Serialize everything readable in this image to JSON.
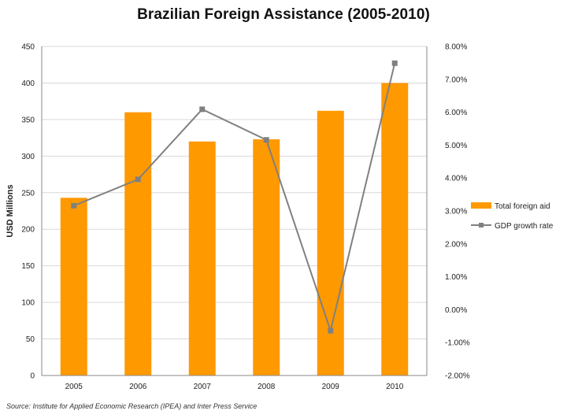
{
  "chart_data": {
    "type": "bar",
    "title": "Brazilian Foreign Assistance (2005-2010)",
    "source": "Source: Institute for Applied Economic Research (IPEA) and Inter Press Service",
    "categories": [
      "2005",
      "2006",
      "2007",
      "2008",
      "2009",
      "2010"
    ],
    "ylabel": "USD Millions",
    "ylim": [
      0,
      450
    ],
    "y_ticks": [
      0,
      50,
      100,
      150,
      200,
      250,
      300,
      350,
      400,
      450
    ],
    "y_tick_labels": [
      "0",
      "50",
      "100",
      "150",
      "200",
      "250",
      "300",
      "350",
      "400",
      "450"
    ],
    "y2lim": [
      -2.0,
      8.0
    ],
    "y2_ticks": [
      -2,
      -1,
      0,
      1,
      2,
      3,
      4,
      5,
      6,
      7,
      8
    ],
    "y2_tick_labels": [
      "-2.00%",
      "-1.00%",
      "0.00%",
      "1.00%",
      "2.00%",
      "3.00%",
      "4.00%",
      "5.00%",
      "6.00%",
      "7.00%",
      "8.00%"
    ],
    "grid": "horizontal",
    "legend_position": "right",
    "series": [
      {
        "name": "Total foreign aid",
        "type": "bar",
        "axis": "left",
        "color": "#FF9900",
        "values": [
          243,
          360,
          320,
          323,
          362,
          400
        ]
      },
      {
        "name": "GDP growth rate",
        "type": "line",
        "axis": "right",
        "color": "#808080",
        "values": [
          3.16,
          3.96,
          6.09,
          5.16,
          -0.64,
          7.49
        ]
      }
    ]
  }
}
